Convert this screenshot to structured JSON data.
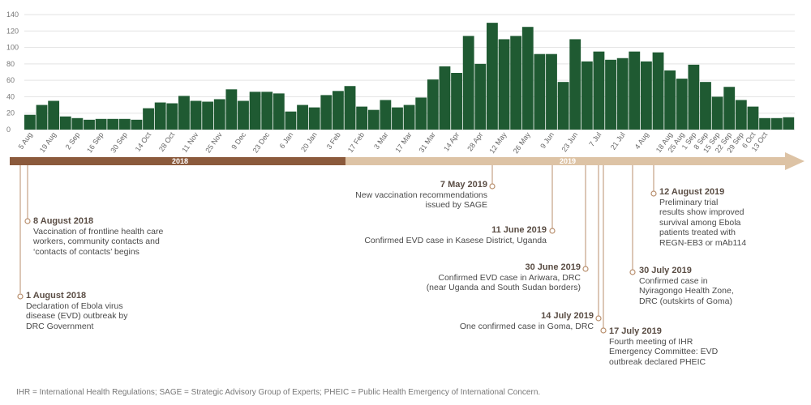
{
  "chart_data": {
    "type": "bar",
    "ylim": [
      0,
      140
    ],
    "yticks": [
      0,
      20,
      40,
      60,
      80,
      100,
      120,
      140
    ],
    "grid": true,
    "bar_color": "#1f5a32",
    "values": [
      18,
      30,
      35,
      16,
      14,
      12,
      13,
      13,
      13,
      12,
      26,
      33,
      32,
      41,
      35,
      34,
      37,
      49,
      35,
      46,
      46,
      44,
      22,
      30,
      27,
      42,
      47,
      53,
      28,
      24,
      36,
      27,
      30,
      39,
      61,
      77,
      69,
      114,
      80,
      130,
      110,
      114,
      125,
      92,
      92,
      58,
      110,
      83,
      95,
      85,
      87,
      95,
      83,
      94,
      72,
      62,
      79,
      58,
      40,
      52,
      36,
      28,
      14,
      14,
      15
    ],
    "x_labels": [
      "5 Aug",
      "19 Aug",
      "2 Sep",
      "16 Sep",
      "30 Sep",
      "14 Oct",
      "28 Oct",
      "11 Nov",
      "25 Nov",
      "9 Dec",
      "23 Dec",
      "6 Jan",
      "20 Jan",
      "3 Feb",
      "17 Feb",
      "3 Mar",
      "17 Mar",
      "31 Mar",
      "14 Apr",
      "28 Apr",
      "12 May",
      "26 May",
      "9 Jun",
      "23 Jun",
      "7 Jul",
      "21 Jul",
      "4 Aug",
      "18 Aug",
      "25 Aug",
      "1 Sep",
      "8 Sep",
      "15 Sep",
      "22 Sep",
      "29 Sep",
      "6 Oct",
      "13 Oct"
    ],
    "x_label_index": [
      0,
      2,
      4,
      6,
      8,
      10,
      12,
      14,
      16,
      18,
      20,
      22,
      24,
      26,
      28,
      30,
      32,
      34,
      36,
      38,
      40,
      42,
      44,
      46,
      48,
      50,
      52,
      54,
      55,
      56,
      57,
      58,
      59,
      60,
      61,
      62
    ]
  },
  "timeline": {
    "year_2018": "2018",
    "year_2019": "2019",
    "colors": {
      "y2018": "#8b5a3c",
      "y2019": "#ddc3a5"
    }
  },
  "events": [
    {
      "date": "1 August 2018",
      "text": [
        "Declaration of Ebola virus",
        "disease (EVD) outbreak by",
        "DRC Government"
      ]
    },
    {
      "date": "8 August 2018",
      "text": [
        "Vaccination of frontline health care",
        "workers, community contacts and",
        "‘contacts of contacts’ begins"
      ]
    },
    {
      "date": "7 May 2019",
      "text": [
        "New vaccination recommendations",
        "issued by SAGE"
      ]
    },
    {
      "date": "11 June 2019",
      "text": [
        "Confirmed EVD case in Kasese District, Uganda"
      ]
    },
    {
      "date": "30 June 2019",
      "text": [
        "Confirmed EVD case in Ariwara, DRC",
        "(near Uganda and South Sudan borders)"
      ]
    },
    {
      "date": "14 July 2019",
      "text": [
        "One confirmed case in Goma, DRC"
      ]
    },
    {
      "date": "17 July 2019",
      "text": [
        "Fourth meeting of IHR",
        "Emergency Committee: EVD",
        "outbreak declared PHEIC"
      ]
    },
    {
      "date": "30 July 2019",
      "text": [
        "Confirmed case in",
        "Nyiragongo Health Zone,",
        "DRC (outskirts of Goma)"
      ]
    },
    {
      "date": "12 August 2019",
      "text": [
        "Preliminary trial",
        "results show improved",
        "survival among Ebola",
        "patients treated with",
        "REGN-EB3 or mAb114"
      ]
    }
  ],
  "footnote": "IHR = International Health Regulations; SAGE = Strategic Advisory Group of Experts; PHEIC = Public Health Emergency of International Concern."
}
